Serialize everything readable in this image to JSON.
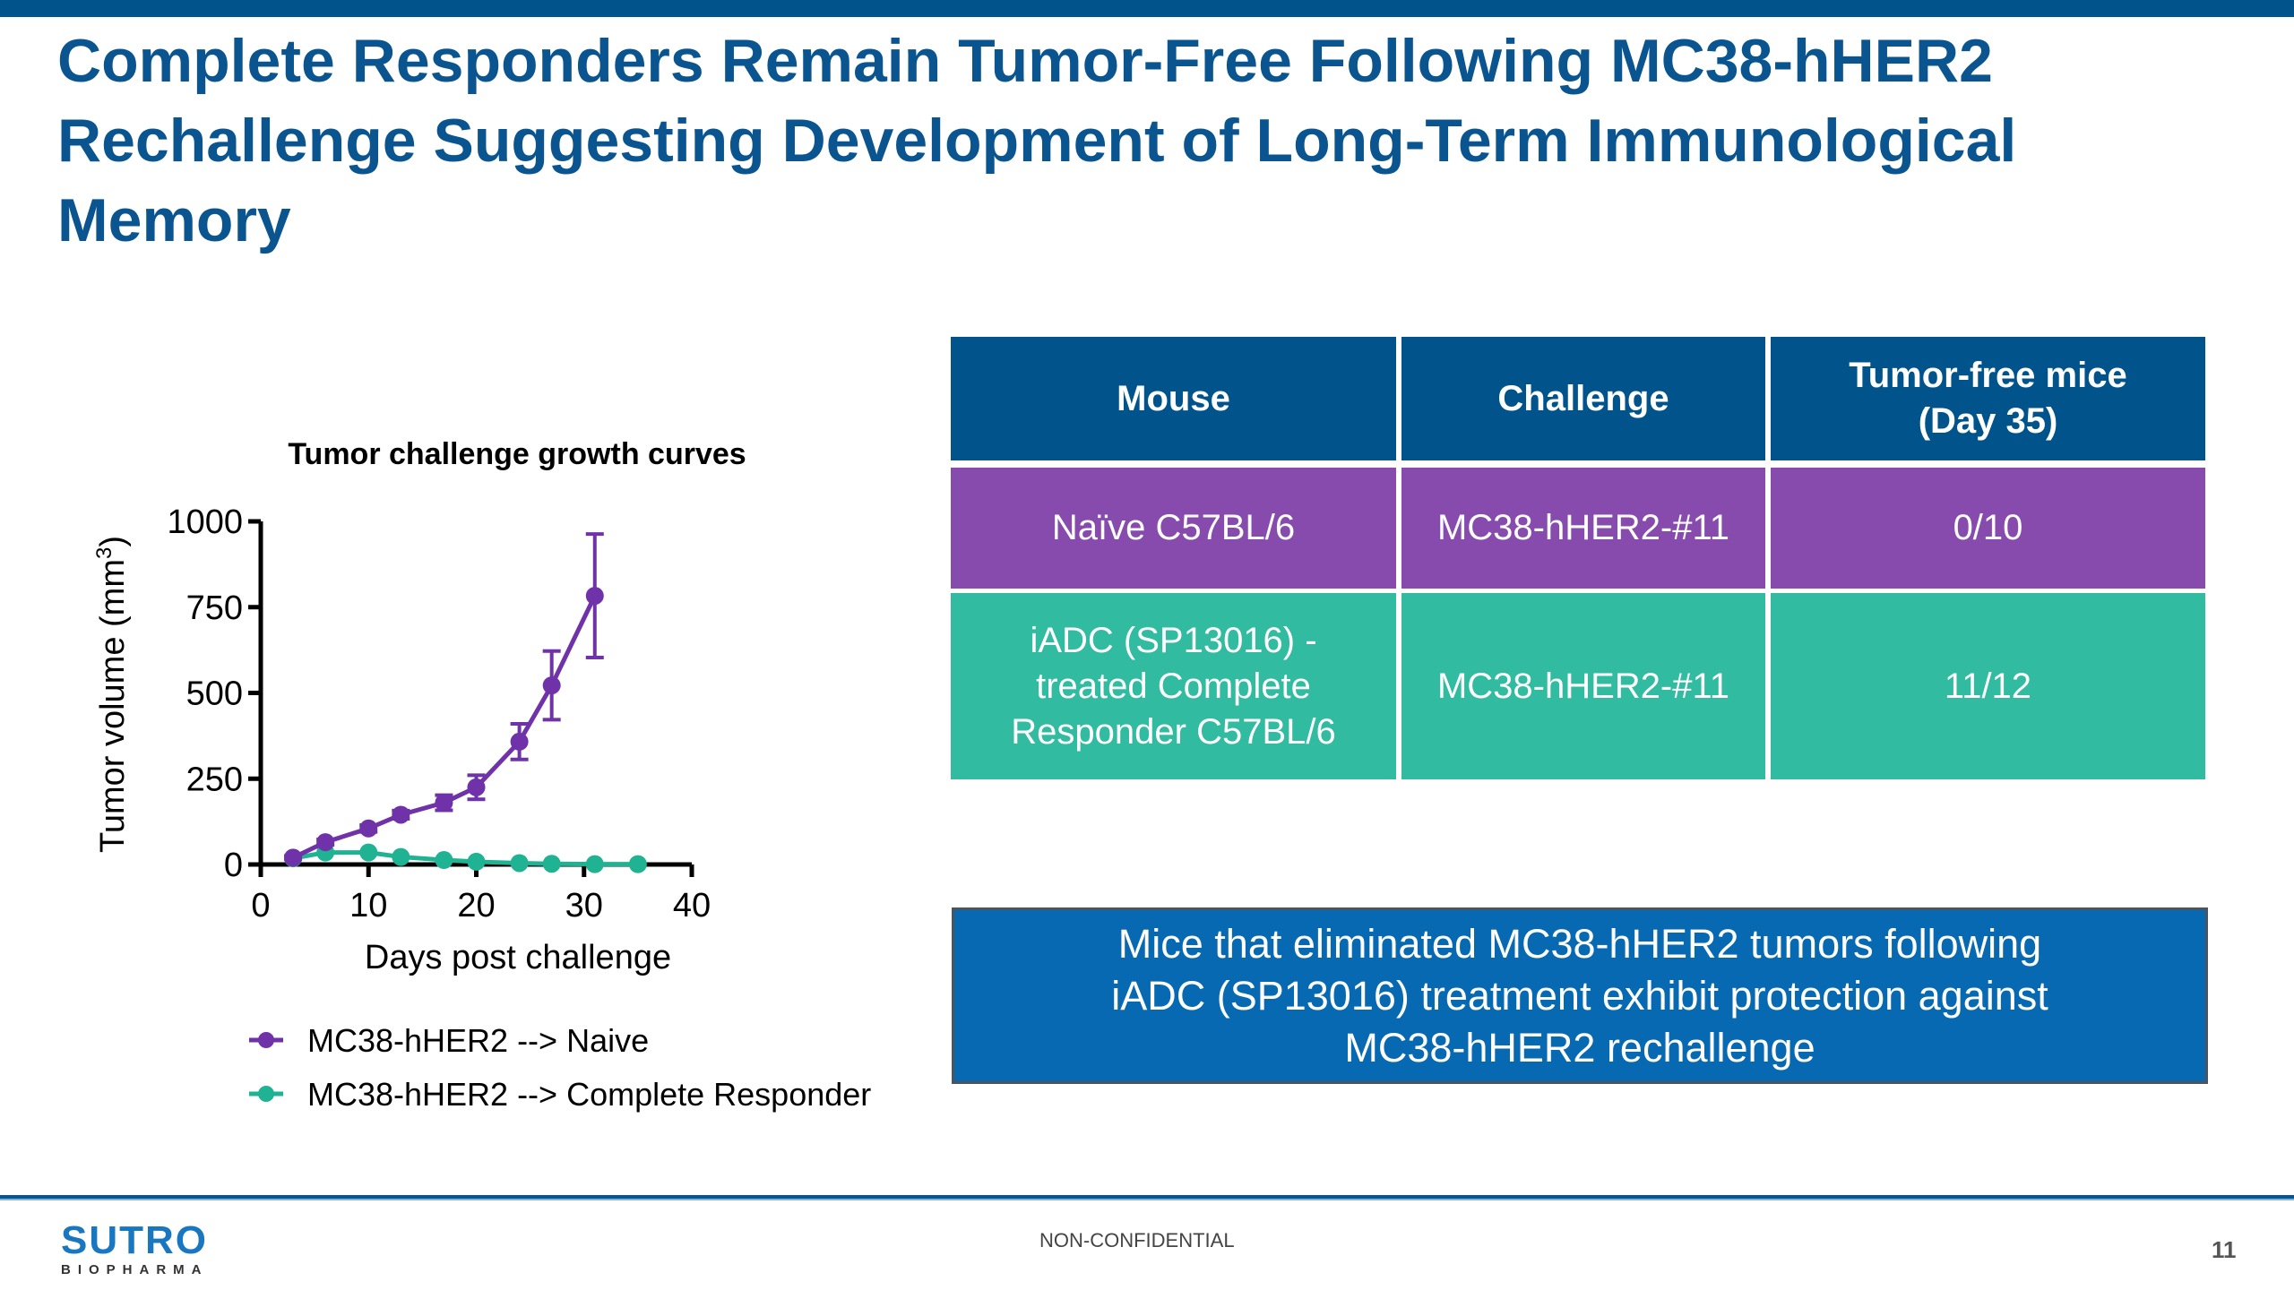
{
  "slide": {
    "title": "Complete Responders Remain Tumor-Free Following MC38-hHER2 Rechallenge Suggesting Development of Long-Term Immunological Memory",
    "page_number": "11",
    "confidentiality": "NON-CONFIDENTIAL",
    "logo": {
      "main": "SUTRO",
      "sub": "BIOPHARMA"
    }
  },
  "colors": {
    "brand_blue": "#0a5590",
    "naive_purple": "#6f32a8",
    "responder_teal": "#1fb394",
    "table_header": "#01548b",
    "table_row_naive": "#874bae",
    "table_row_cr": "#31bba0",
    "callout_fill": "#0769b1"
  },
  "chart_data": {
    "type": "line",
    "title": "Tumor challenge growth curves",
    "xlabel": "Days post challenge",
    "ylabel": "Tumor volume (mm",
    "ylabel_superscript": "3",
    "ylabel_close": ")",
    "xlim": [
      0,
      40
    ],
    "ylim": [
      0,
      1000
    ],
    "xticks": [
      0,
      10,
      20,
      30,
      40
    ],
    "yticks": [
      0,
      250,
      500,
      750,
      1000
    ],
    "grid": false,
    "legend_position": "bottom",
    "series": [
      {
        "name": "MC38-hHER2 --> Naive",
        "color": "#6f32a8",
        "x": [
          3,
          6,
          10,
          13,
          17,
          20,
          24,
          27,
          31
        ],
        "y": [
          20,
          65,
          105,
          145,
          180,
          225,
          358,
          522,
          783
        ],
        "error": [
          5,
          8,
          10,
          12,
          22,
          35,
          52,
          100,
          180
        ]
      },
      {
        "name": "MC38-hHER2 --> Complete Responder",
        "color": "#1fb394",
        "x": [
          3,
          6,
          10,
          13,
          17,
          20,
          24,
          27,
          31,
          35
        ],
        "y": [
          18,
          35,
          35,
          22,
          13,
          8,
          4,
          2,
          1,
          1
        ],
        "error": [
          0,
          0,
          0,
          0,
          0,
          0,
          0,
          0,
          0,
          0
        ]
      }
    ]
  },
  "table": {
    "headers": [
      "Mouse",
      "Challenge",
      "Tumor-free mice (Day 35)"
    ],
    "header_lines": [
      [
        "Mouse"
      ],
      [
        "Challenge"
      ],
      [
        "Tumor-free mice",
        "(Day 35)"
      ]
    ],
    "rows": [
      {
        "mouse_lines": [
          "Naïve C57BL/6"
        ],
        "challenge": "MC38-hHER2-#11",
        "tumor_free": "0/10"
      },
      {
        "mouse_lines": [
          "iADC (SP13016) -",
          "treated Complete",
          "Responder C57BL/6"
        ],
        "challenge": "MC38-hHER2-#11",
        "tumor_free": "11/12"
      }
    ]
  },
  "callout": {
    "lines": [
      "Mice that eliminated MC38-hHER2 tumors following",
      "iADC (SP13016) treatment exhibit protection against",
      "MC38-hHER2 rechallenge"
    ]
  }
}
